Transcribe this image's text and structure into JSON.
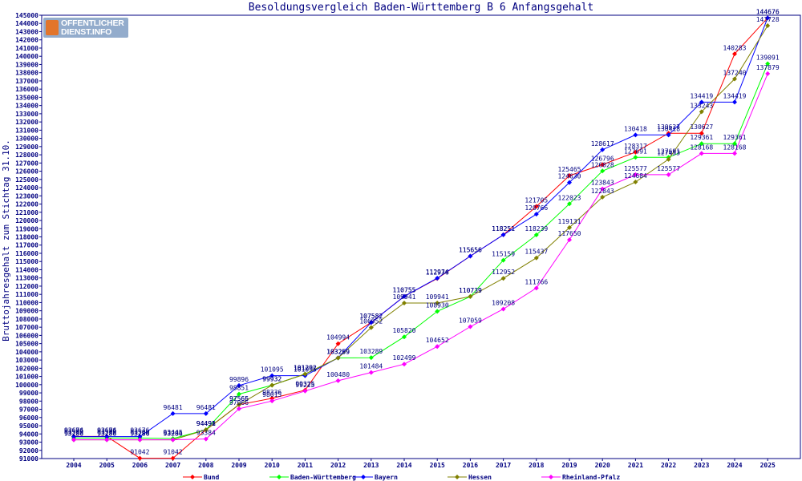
{
  "logo": {
    "line1": "OFFENTLICHER",
    "line2": "DIENST.INFO"
  },
  "chart_data": {
    "type": "line",
    "title": "Besoldungsvergleich Baden-Württemberg B 6 Anfangsgehalt",
    "xlabel": "",
    "ylabel": "Bruttojahresgehalt zum Stichtag 31.10.",
    "ylim": [
      91000,
      145000
    ],
    "y_step": 1000,
    "grid": false,
    "legend_position": "bottom",
    "x": [
      "2004",
      "2005",
      "2006",
      "2007",
      "2008",
      "2009",
      "2010",
      "2011",
      "2012",
      "2013",
      "2014",
      "2015",
      "2016",
      "2017",
      "2018",
      "2019",
      "2020",
      "2021",
      "2022",
      "2023",
      "2024",
      "2025"
    ],
    "series": [
      {
        "name": "Bund",
        "color": "#ff0000",
        "values": [
          93694,
          93694,
          91042,
          91042,
          94491,
          97566,
          98336,
          99325,
          104994,
          107582,
          110755,
          112936,
          115656,
          118251,
          121705,
          125465,
          126796,
          128317,
          130627,
          130627,
          140283,
          144676
        ]
      },
      {
        "name": "Baden-Württemberg",
        "color": "#00ff00",
        "values": [
          93500,
          93500,
          93500,
          93445,
          94498,
          98851,
          99932,
          101292,
          103259,
          103289,
          105820,
          108930,
          110739,
          115159,
          118239,
          122023,
          126028,
          127691,
          127691,
          129361,
          129361,
          139091
        ]
      },
      {
        "name": "Bayern",
        "color": "#0000ff",
        "values": [
          93676,
          93676,
          93676,
          96481,
          96481,
          99896,
          101095,
          101095,
          103269,
          107582,
          110755,
          112974,
          115656,
          118251,
          120766,
          124630,
          128617,
          130418,
          130418,
          134419,
          134419,
          144676
        ]
      },
      {
        "name": "Hessen",
        "color": "#808000",
        "values": [
          93286,
          93286,
          93286,
          93286,
          94491,
          97565,
          99932,
          101292,
          103259,
          106952,
          109941,
          109941,
          110739,
          112952,
          115437,
          119131,
          122843,
          124684,
          127453,
          133243,
          137240,
          143728
        ]
      },
      {
        "name": "Rheinland-Pfalz",
        "color": "#ff00ff",
        "values": [
          93286,
          93286,
          93286,
          93286,
          93384,
          97066,
          98015,
          99225,
          100480,
          101484,
          102499,
          104652,
          107059,
          109208,
          111766,
          117650,
          123843,
          125577,
          125577,
          128168,
          128168,
          137879
        ]
      }
    ]
  }
}
